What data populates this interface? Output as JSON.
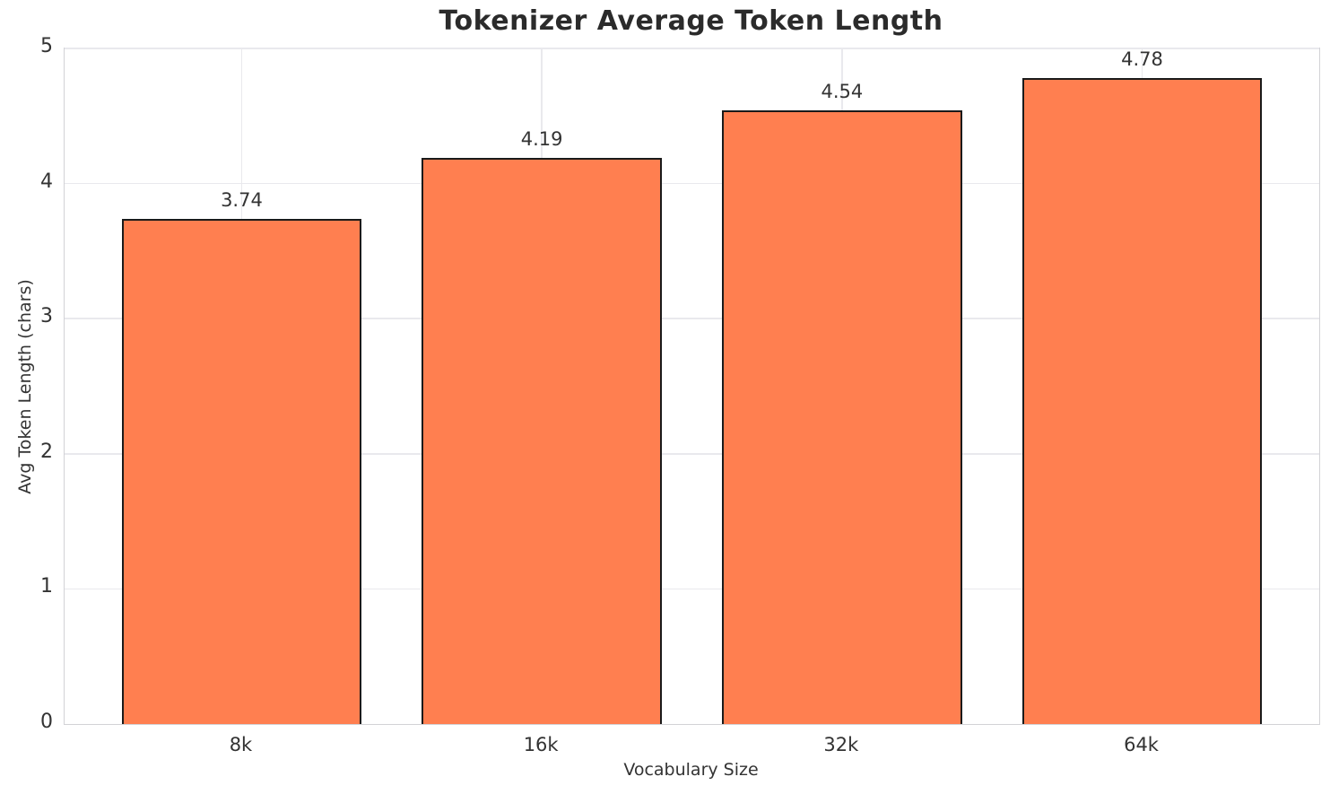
{
  "chart_data": {
    "type": "bar",
    "title": "Tokenizer Average Token Length",
    "xlabel": "Vocabulary Size",
    "ylabel": "Avg Token Length (chars)",
    "categories": [
      "8k",
      "16k",
      "32k",
      "64k"
    ],
    "values": [
      3.74,
      4.19,
      4.54,
      4.78
    ],
    "bar_labels": [
      "3.74",
      "4.19",
      "4.54",
      "4.78"
    ],
    "ylim": [
      0,
      5
    ],
    "yticks": [
      "0",
      "1",
      "2",
      "3",
      "4",
      "5"
    ],
    "grid": "on",
    "legend_position": "none",
    "colors": {
      "bar_fill": "#FF7F50",
      "bar_edge": "#1a1a1a",
      "grid_line": "#e9e9ed",
      "spine": "#d2d2d6",
      "title_text": "#2b2b2b",
      "tick_text": "#333333",
      "background": "#ffffff"
    }
  }
}
